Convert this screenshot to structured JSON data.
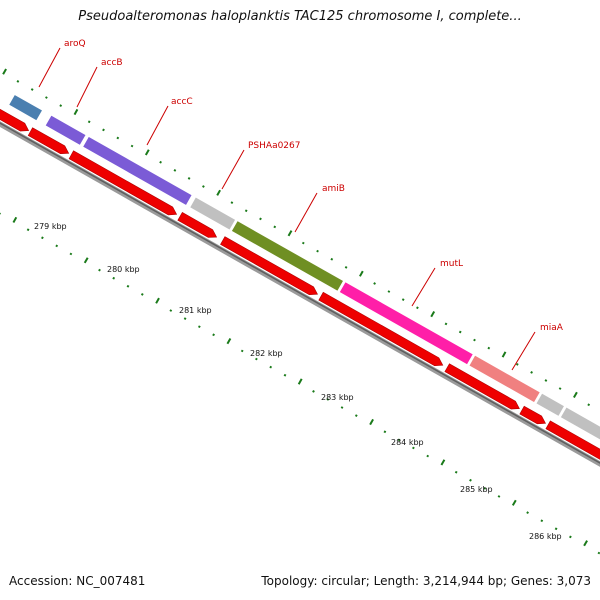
{
  "title": "Pseudoalteromonas haloplanktis TAC125 chromosome I, complete...",
  "accession": "Accession: NC_007481",
  "summary": "Topology: circular; Length: 3,214,944 bp; Genes: 3,073",
  "colors": {
    "backbone": "#808080",
    "cds": "#ee0000",
    "tick": "#1a7a1a",
    "label": "#cc0000"
  },
  "genes": [
    {
      "name": "aroQ",
      "color": "#4a7fb0"
    },
    {
      "name": "accB",
      "color": "#7b5bd6"
    },
    {
      "name": "accC",
      "color": "#7b5bd6"
    },
    {
      "name": "PSHAa0267",
      "color": "#c0c0c0"
    },
    {
      "name": "amiB",
      "color": "#6f8f23"
    },
    {
      "name": "mutL",
      "color": "#ff1fa8"
    },
    {
      "name": "miaA",
      "color": "#f08080"
    },
    {
      "name": "",
      "color": "#c0c0c0"
    },
    {
      "name": "",
      "color": "#c0c0c0"
    }
  ],
  "ruler_labels": [
    "279 kbp",
    "280 kbp",
    "281 kbp",
    "282 kbp",
    "283 kbp",
    "284 kbp",
    "285 kbp",
    "286 kbp"
  ]
}
